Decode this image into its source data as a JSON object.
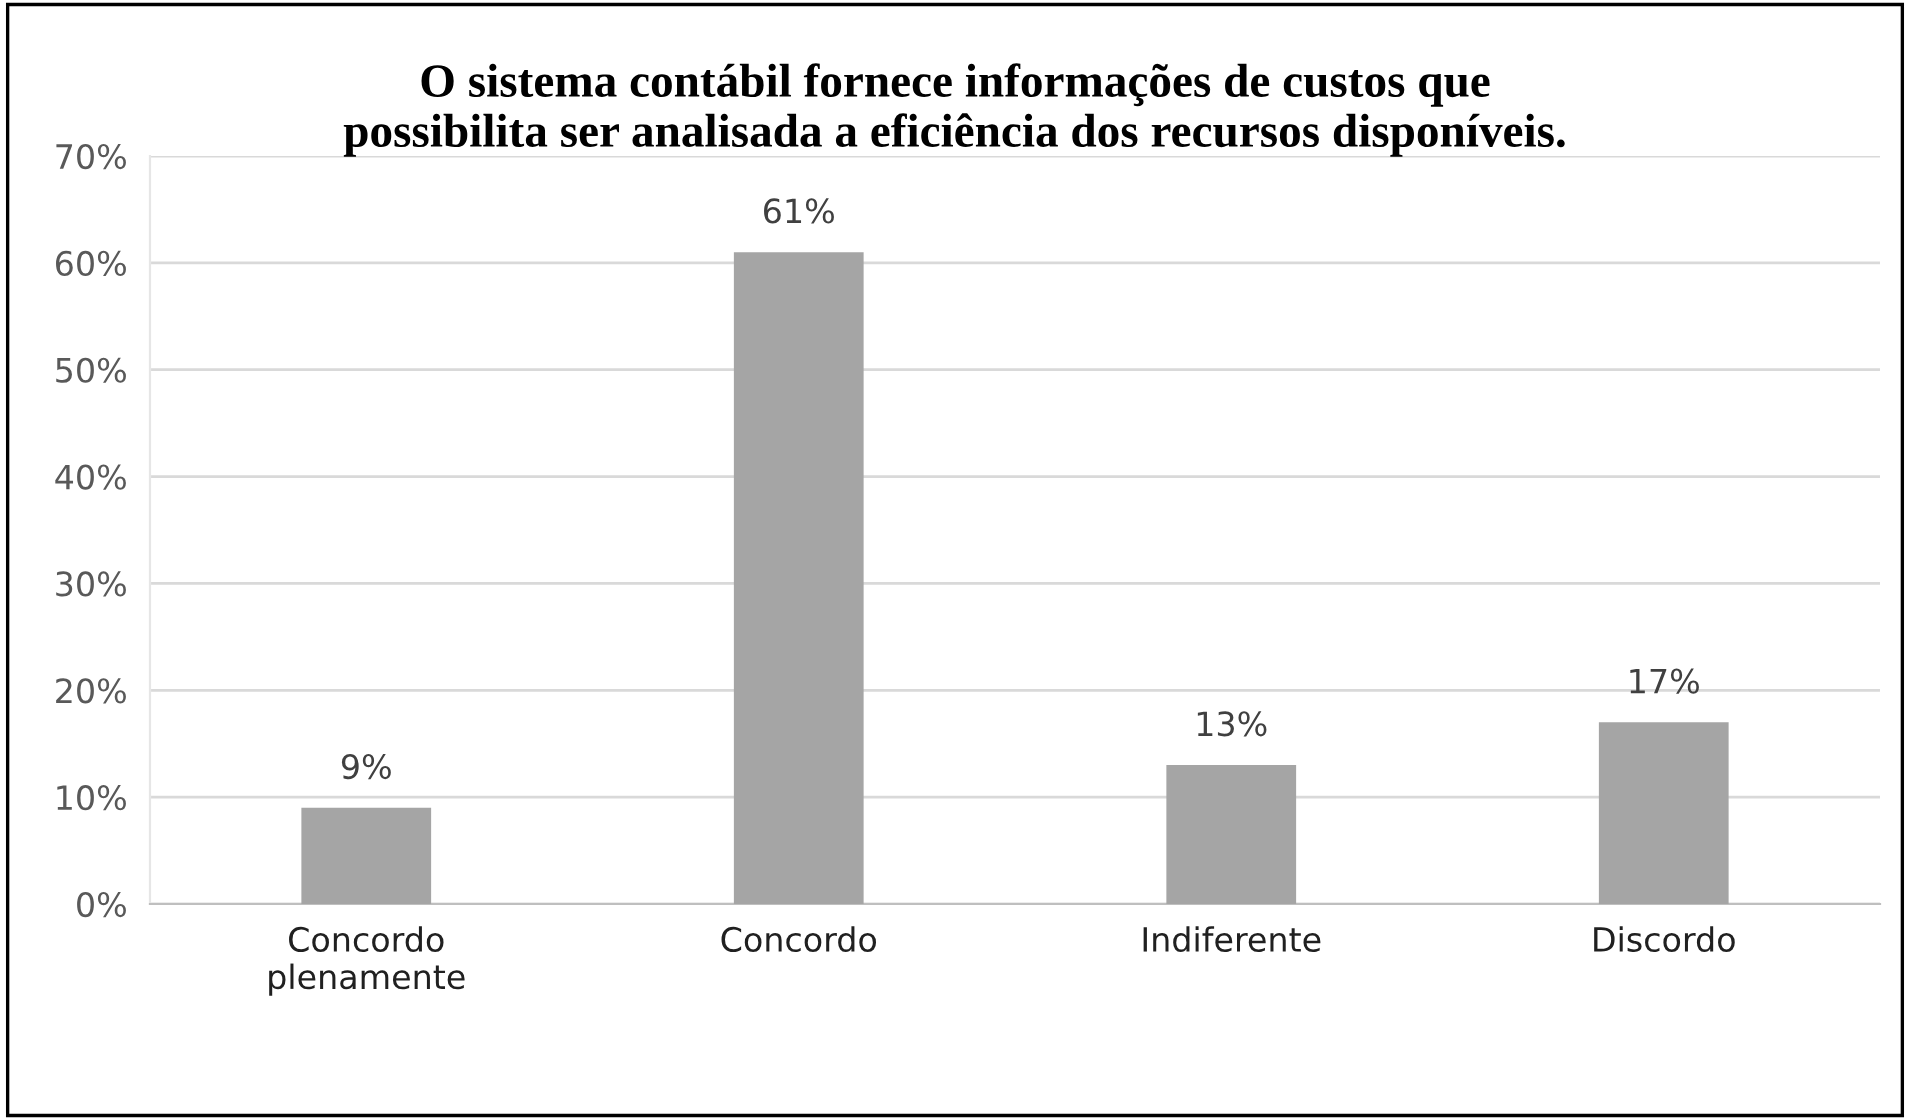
{
  "chart_data": {
    "type": "bar",
    "title": "O sistema contábil fornece informações de custos que\npossibilita ser analisada a eficiência dos recursos disponíveis.",
    "categories": [
      "Concordo\nplenamente",
      "Concordo",
      "Indiferente",
      "Discordo"
    ],
    "values": [
      9,
      61,
      13,
      17
    ],
    "color": "#a5a5a5",
    "value_labels": [
      "9%",
      "61%",
      "13%",
      "17%"
    ],
    "ylim": [
      0,
      70
    ],
    "yticks": [
      {
        "value": 0,
        "label": "0%"
      },
      {
        "value": 10,
        "label": "10%"
      },
      {
        "value": 20,
        "label": "20%"
      },
      {
        "value": 30,
        "label": "30%"
      },
      {
        "value": 40,
        "label": "40%"
      },
      {
        "value": 50,
        "label": "50%"
      },
      {
        "value": 60,
        "label": "60%"
      },
      {
        "value": 70,
        "label": "70%"
      }
    ],
    "grid": "y",
    "legend": false
  }
}
